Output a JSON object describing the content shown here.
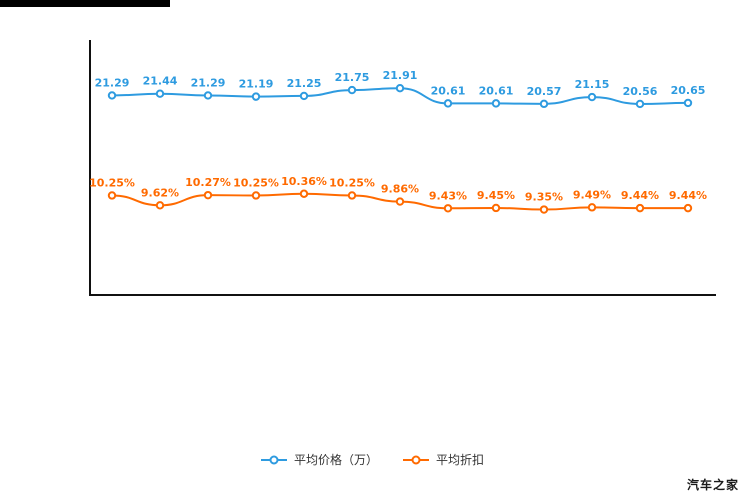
{
  "page": {
    "background": "#ffffff"
  },
  "colors": {
    "axis": "#111111",
    "legend_text": "#333333",
    "price_series": "#2E9BE0",
    "discount_series": "#FF6A00"
  },
  "chart_data": {
    "type": "line",
    "title": "",
    "grid": false,
    "legend_position": "bottom",
    "x_axis_labels_visible": false,
    "series": [
      {
        "name": "平均价格（万）",
        "color": "#2E9BE0",
        "ylim": [
          20.3,
          22.1
        ],
        "values": [
          21.29,
          21.44,
          21.29,
          21.19,
          21.25,
          21.75,
          21.91,
          20.61,
          20.61,
          20.57,
          21.15,
          20.56,
          20.65
        ],
        "labels": [
          "21.29",
          "21.44",
          "21.29",
          "21.19",
          "21.25",
          "21.75",
          "21.91",
          "20.61",
          "20.61",
          "20.57",
          "21.15",
          "20.56",
          "20.65"
        ]
      },
      {
        "name": "平均折扣",
        "color": "#FF6A00",
        "ylim": [
          9.0,
          10.6
        ],
        "values": [
          10.25,
          9.62,
          10.27,
          10.25,
          10.36,
          10.25,
          9.86,
          9.43,
          9.45,
          9.35,
          9.49,
          9.44,
          9.44
        ],
        "labels": [
          "10.25%",
          "9.62%",
          "10.27%",
          "10.25%",
          "10.36%",
          "10.25%",
          "9.86%",
          "9.43%",
          "9.45%",
          "9.35%",
          "9.49%",
          "9.44%",
          "9.44%"
        ]
      }
    ]
  },
  "watermark": "汽车之家"
}
